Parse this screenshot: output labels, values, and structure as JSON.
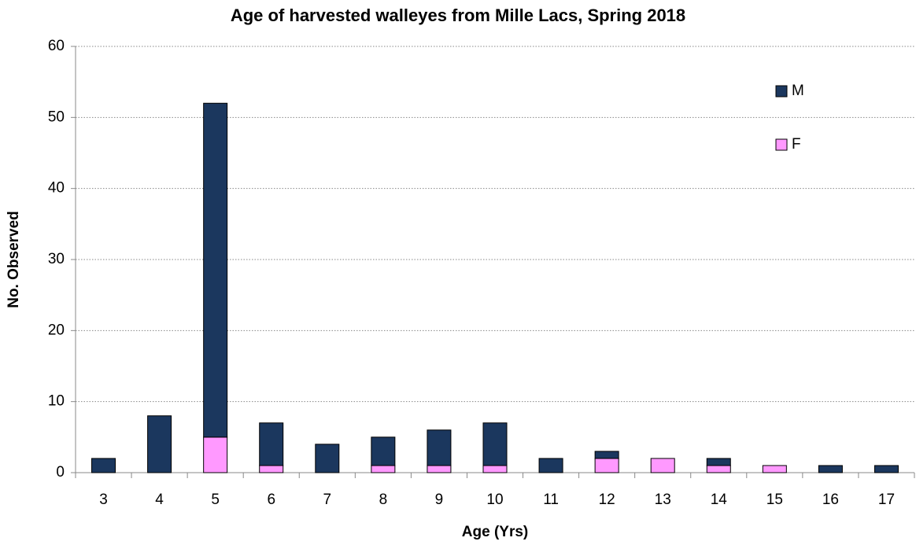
{
  "chart_data": {
    "type": "stacked_bar",
    "title": "Age of harvested walleyes from Mille Lacs, Spring 2018",
    "x_label": "Age (Yrs)",
    "y_label": "No. Observed",
    "categories": [
      "3",
      "4",
      "5",
      "6",
      "7",
      "8",
      "9",
      "10",
      "11",
      "12",
      "13",
      "14",
      "15",
      "16",
      "17"
    ],
    "series": [
      {
        "name": "F",
        "color": "#ff99ff",
        "values": [
          0,
          0,
          5,
          1,
          0,
          1,
          1,
          1,
          0,
          2,
          2,
          1,
          1,
          0,
          0
        ]
      },
      {
        "name": "M",
        "color": "#1b375e",
        "values": [
          2,
          8,
          47,
          6,
          4,
          4,
          5,
          6,
          2,
          1,
          0,
          1,
          0,
          1,
          1
        ]
      }
    ],
    "ylim": [
      0,
      60
    ],
    "yticks": [
      0,
      10,
      20,
      30,
      40,
      50,
      60
    ],
    "grid": true,
    "legend": "upper right"
  }
}
